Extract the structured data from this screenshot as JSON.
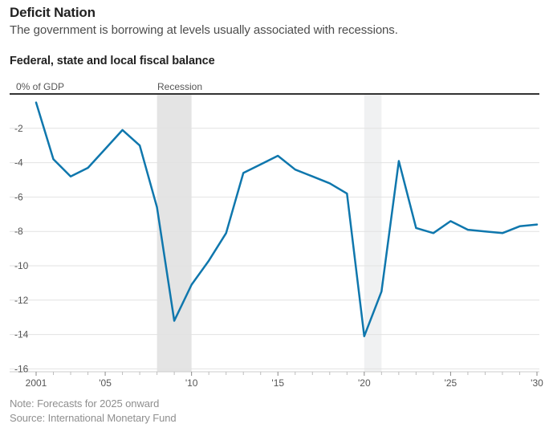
{
  "header": {
    "title": "Deficit Nation",
    "subtitle": "The government is borrowing at levels usually associated with recessions."
  },
  "chart": {
    "title": "Federal, state and local fiscal balance",
    "y_axis_unit_label": "0% of GDP",
    "recession_label": "Recession",
    "note": "Note: Forecasts for 2025 onward",
    "source": "Source: International Monetary Fund"
  },
  "chart_data": {
    "type": "line",
    "title": "Federal, state and local fiscal balance",
    "xlabel": "",
    "ylabel": "% of GDP",
    "ylim": [
      -16,
      0
    ],
    "xlim": [
      2001,
      2030
    ],
    "grid": true,
    "legend_position": "none",
    "line_color": "#0f77ad",
    "x": [
      2001,
      2002,
      2003,
      2004,
      2005,
      2006,
      2007,
      2008,
      2009,
      2010,
      2011,
      2012,
      2013,
      2014,
      2015,
      2016,
      2017,
      2018,
      2019,
      2020,
      2021,
      2022,
      2023,
      2024,
      2025,
      2026,
      2027,
      2028,
      2029,
      2030
    ],
    "values": [
      -0.5,
      -3.8,
      -4.8,
      -4.3,
      -3.2,
      -2.1,
      -3.0,
      -6.6,
      -13.2,
      -11.1,
      -9.7,
      -8.1,
      -4.6,
      -4.1,
      -3.6,
      -4.4,
      -4.8,
      -5.2,
      -5.8,
      -14.1,
      -11.5,
      -3.9,
      -7.8,
      -8.1,
      -7.4,
      -7.9,
      -8.0,
      -8.1,
      -7.7,
      -7.6
    ],
    "y_ticks": [
      -2,
      -4,
      -6,
      -8,
      -10,
      -12,
      -14,
      -16
    ],
    "y_tick_labels": [
      "-2",
      "-4",
      "-6",
      "-8",
      "-10",
      "-12",
      "-14",
      "-16"
    ],
    "x_tick_years": [
      2001,
      2005,
      2010,
      2015,
      2020,
      2025,
      2030
    ],
    "x_tick_labels": [
      "2001",
      "'05",
      "'10",
      "'15",
      "'20",
      "'25",
      "'30"
    ],
    "recession_bands": [
      {
        "start_year": 2008,
        "end_year": 2010,
        "color": "#e4e4e4"
      },
      {
        "start_year": 2020,
        "end_year": 2021,
        "color": "#f0f1f2"
      }
    ],
    "forecast_from": 2025,
    "annotations": [
      "0% of GDP",
      "Recession"
    ]
  }
}
